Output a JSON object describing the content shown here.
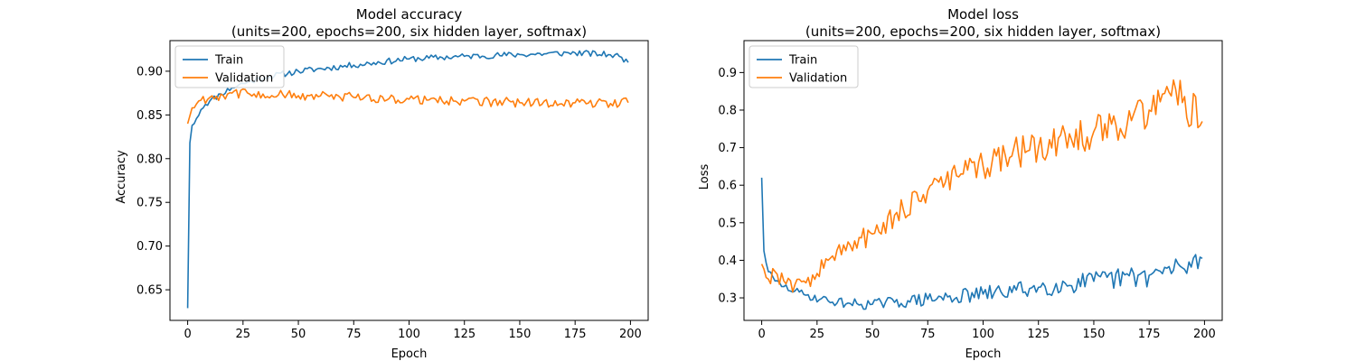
{
  "chart_data": [
    {
      "type": "line",
      "title": "Model accuracy",
      "subtitle": "(units=200, epochs=200, six hidden layer, softmax)",
      "xlabel": "Epoch",
      "ylabel": "Accuracy",
      "xlim": [
        -8,
        208
      ],
      "ylim": [
        0.615,
        0.935
      ],
      "xticks": [
        0,
        25,
        50,
        75,
        100,
        125,
        150,
        175,
        200
      ],
      "yticks": [
        0.65,
        0.7,
        0.75,
        0.8,
        0.85,
        0.9
      ],
      "ytick_labels": [
        "0.65",
        "0.70",
        "0.75",
        "0.80",
        "0.85",
        "0.90"
      ],
      "legend_position": "upper-left",
      "series": [
        {
          "name": "Train",
          "color": "#1f77b4",
          "keypoints": [
            [
              0,
              0.629
            ],
            [
              1,
              0.818
            ],
            [
              2,
              0.838
            ],
            [
              4,
              0.846
            ],
            [
              6,
              0.856
            ],
            [
              8,
              0.862
            ],
            [
              10,
              0.866
            ],
            [
              15,
              0.874
            ],
            [
              20,
              0.881
            ],
            [
              25,
              0.886
            ],
            [
              35,
              0.893
            ],
            [
              50,
              0.9
            ],
            [
              75,
              0.907
            ],
            [
              100,
              0.914
            ],
            [
              125,
              0.917
            ],
            [
              150,
              0.919
            ],
            [
              175,
              0.921
            ],
            [
              190,
              0.919
            ],
            [
              195,
              0.917
            ],
            [
              199,
              0.91
            ]
          ],
          "noise": 0.0035
        },
        {
          "name": "Validation",
          "color": "#ff7f0e",
          "keypoints": [
            [
              0,
              0.84
            ],
            [
              2,
              0.858
            ],
            [
              5,
              0.866
            ],
            [
              10,
              0.87
            ],
            [
              20,
              0.875
            ],
            [
              30,
              0.874
            ],
            [
              50,
              0.872
            ],
            [
              75,
              0.87
            ],
            [
              100,
              0.868
            ],
            [
              125,
              0.866
            ],
            [
              150,
              0.864
            ],
            [
              175,
              0.864
            ],
            [
              199,
              0.864
            ]
          ],
          "noise": 0.0055
        }
      ]
    },
    {
      "type": "line",
      "title": "Model loss",
      "subtitle": "(units=200, epochs=200, six hidden layer, softmax)",
      "xlabel": "Epoch",
      "ylabel": "Loss",
      "xlim": [
        -8,
        208
      ],
      "ylim": [
        0.24,
        0.985
      ],
      "xticks": [
        0,
        25,
        50,
        75,
        100,
        125,
        150,
        175,
        200
      ],
      "yticks": [
        0.3,
        0.4,
        0.5,
        0.6,
        0.7,
        0.8,
        0.9
      ],
      "ytick_labels": [
        "0.3",
        "0.4",
        "0.5",
        "0.6",
        "0.7",
        "0.8",
        "0.9"
      ],
      "legend_position": "upper-left",
      "series": [
        {
          "name": "Train",
          "color": "#1f77b4",
          "keypoints": [
            [
              0,
              0.62
            ],
            [
              1,
              0.425
            ],
            [
              3,
              0.37
            ],
            [
              6,
              0.345
            ],
            [
              10,
              0.33
            ],
            [
              15,
              0.318
            ],
            [
              20,
              0.307
            ],
            [
              30,
              0.292
            ],
            [
              40,
              0.285
            ],
            [
              50,
              0.283
            ],
            [
              60,
              0.288
            ],
            [
              75,
              0.296
            ],
            [
              100,
              0.31
            ],
            [
              125,
              0.328
            ],
            [
              150,
              0.344
            ],
            [
              175,
              0.36
            ],
            [
              190,
              0.38
            ],
            [
              199,
              0.405
            ]
          ],
          "noise": 0.02
        },
        {
          "name": "Validation",
          "color": "#ff7f0e",
          "keypoints": [
            [
              0,
              0.39
            ],
            [
              3,
              0.35
            ],
            [
              6,
              0.37
            ],
            [
              10,
              0.345
            ],
            [
              15,
              0.335
            ],
            [
              20,
              0.34
            ],
            [
              25,
              0.365
            ],
            [
              30,
              0.4
            ],
            [
              40,
              0.44
            ],
            [
              50,
              0.47
            ],
            [
              60,
              0.52
            ],
            [
              75,
              0.585
            ],
            [
              90,
              0.63
            ],
            [
              100,
              0.65
            ],
            [
              110,
              0.68
            ],
            [
              125,
              0.7
            ],
            [
              140,
              0.72
            ],
            [
              160,
              0.76
            ],
            [
              175,
              0.8
            ],
            [
              186,
              0.88
            ],
            [
              190,
              0.82
            ],
            [
              199,
              0.77
            ]
          ],
          "noise": 0.035
        }
      ]
    }
  ]
}
